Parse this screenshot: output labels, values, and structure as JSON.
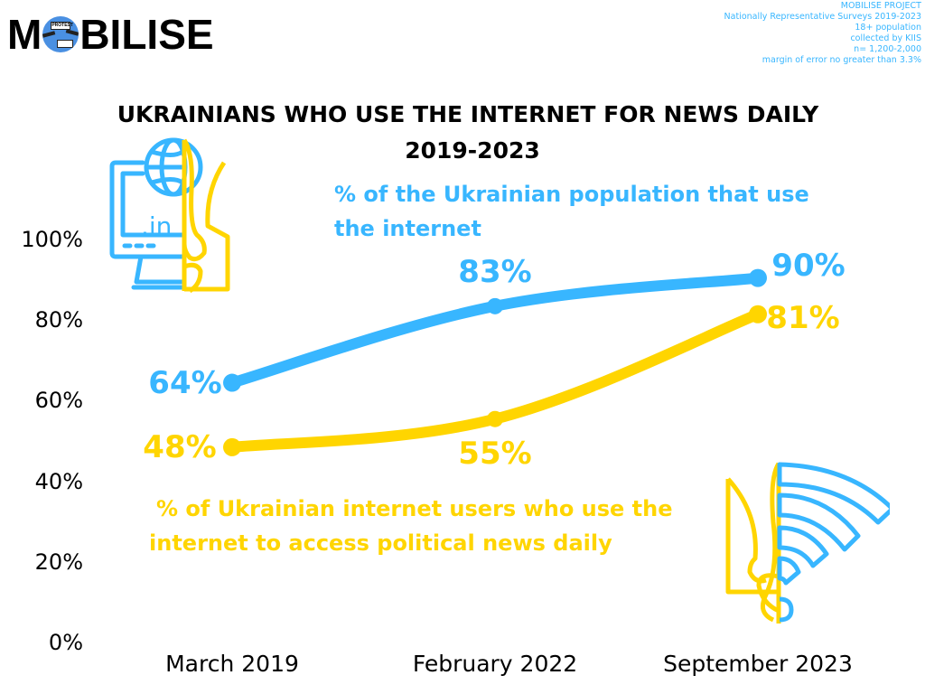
{
  "logo": {
    "text_before": "M",
    "text_after": "BILISE",
    "sign_text": "PROTEST"
  },
  "meta": {
    "lines": [
      "MOBILISE PROJECT",
      "Nationally Representative Surveys 2019-2023",
      "18+ population",
      "collected by KIIS",
      "n= 1,200-2,000",
      "margin of error no greater than 3.3%"
    ]
  },
  "colors": {
    "blue": "#38B6FF",
    "yellow": "#FFD500",
    "text": "#000000"
  },
  "icons": {
    "top_left": "computer-globe-trident-icon",
    "bottom_right": "wifi-trident-icon"
  },
  "chart_data": {
    "type": "line",
    "title": "UKRAINIANS WHO USE THE INTERNET FOR NEWS DAILY",
    "subtitle": "2019-2023",
    "xlabel": "",
    "ylabel": "",
    "categories": [
      "March 2019",
      "February 2022",
      "September 2023"
    ],
    "ylim": [
      0,
      100
    ],
    "yticks": [
      "0%",
      "20%",
      "40%",
      "60%",
      "80%",
      "100%"
    ],
    "ytick_values": [
      0,
      20,
      40,
      60,
      80,
      100
    ],
    "grid": false,
    "series": [
      {
        "name": "% of the Ukrainian population that use the internet",
        "color": "#38B6FF",
        "values": [
          64,
          83,
          90
        ],
        "labels": [
          "64%",
          "83%",
          "90%"
        ]
      },
      {
        "name": "% of Ukrainian internet users who use the internet to access political news daily",
        "color": "#FFD500",
        "values": [
          48,
          55,
          81
        ],
        "labels": [
          "48%",
          "55%",
          "81%"
        ]
      }
    ],
    "legend_blue_lines": [
      "% of the Ukrainian population that use",
      "the internet"
    ],
    "legend_yellow_lines": [
      "% of Ukrainian internet users who use the",
      "internet to access political news daily"
    ]
  }
}
